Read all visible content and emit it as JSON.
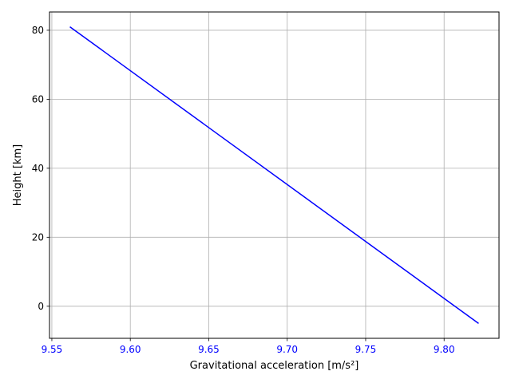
{
  "chart_data": {
    "type": "line",
    "title": "",
    "xlabel": "Gravitational acceleration [m/s²]",
    "ylabel": "Height [km]",
    "xlim": [
      9.5485,
      9.835
    ],
    "ylim": [
      -9.3,
      85.3
    ],
    "xticks": [
      9.55,
      9.6,
      9.65,
      9.7,
      9.75,
      9.8
    ],
    "xtick_labels": [
      "9.55",
      "9.60",
      "9.65",
      "9.70",
      "9.75",
      "9.80"
    ],
    "yticks": [
      0,
      20,
      40,
      60,
      80
    ],
    "ytick_labels": [
      "0",
      "20",
      "40",
      "60",
      "80"
    ],
    "grid": true,
    "xtick_label_color": "#0000ff",
    "series": [
      {
        "color": "#0000ff",
        "x": [
          9.5615,
          9.822
        ],
        "y": [
          81,
          -5
        ]
      }
    ]
  }
}
